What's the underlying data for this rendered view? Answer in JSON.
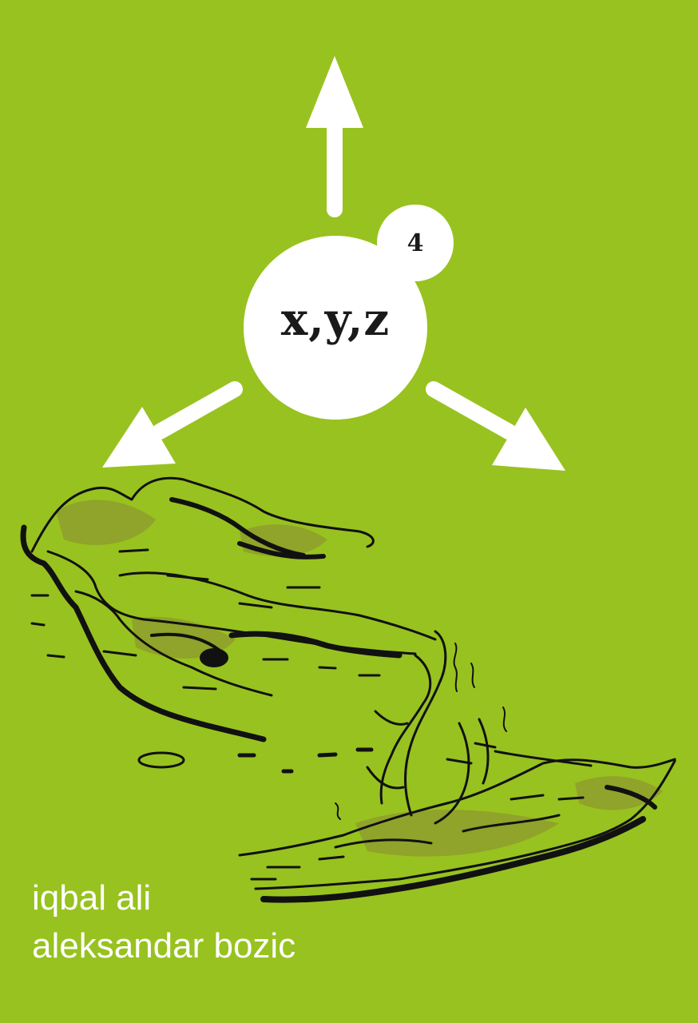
{
  "cover": {
    "main_label": "x,y,z",
    "issue_number": "4",
    "authors": [
      "iqbal ali",
      "aleksandar bozic"
    ],
    "colors": {
      "background": "#98c21f",
      "white": "#ffffff",
      "ink": "#111111",
      "stain": "#8a8a33"
    },
    "illustration": "fallen-deer-line-drawing"
  }
}
